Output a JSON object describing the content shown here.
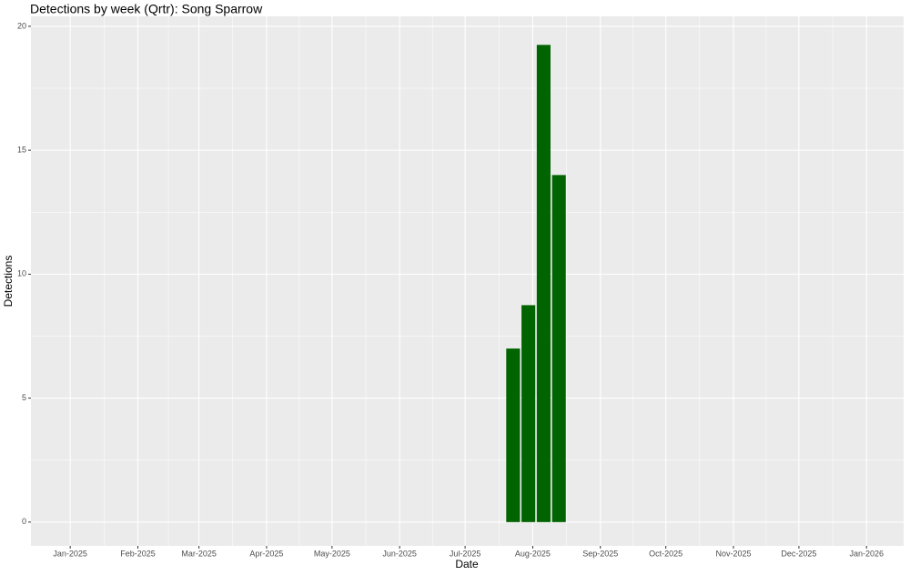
{
  "chart_data": {
    "type": "bar",
    "title": "Detections by week (Qrtr): Song Sparrow",
    "x_label": "Date",
    "y_label": "Detections",
    "x": [
      20292,
      20299,
      20306,
      20313
    ],
    "values": [
      7,
      8.75,
      19.25,
      14
    ],
    "color": "#006400",
    "xlim": [
      20071,
      20471
    ],
    "xticks": [
      {
        "value": 20089,
        "label": "Jan-2025"
      },
      {
        "value": 20120,
        "label": "Feb-2025"
      },
      {
        "value": 20148,
        "label": "Mar-2025"
      },
      {
        "value": 20179,
        "label": "Apr-2025"
      },
      {
        "value": 20209,
        "label": "May-2025"
      },
      {
        "value": 20240,
        "label": "Jun-2025"
      },
      {
        "value": 20270,
        "label": "Jul-2025"
      },
      {
        "value": 20301,
        "label": "Aug-2025"
      },
      {
        "value": 20332,
        "label": "Sep-2025"
      },
      {
        "value": 20362,
        "label": "Oct-2025"
      },
      {
        "value": 20393,
        "label": "Nov-2025"
      },
      {
        "value": 20423,
        "label": "Dec-2025"
      },
      {
        "value": 20454,
        "label": "Jan-2026"
      }
    ],
    "ylim": [
      -0.96,
      20.4
    ],
    "yticks": [
      0,
      5,
      10,
      15,
      20
    ],
    "grid": true
  }
}
